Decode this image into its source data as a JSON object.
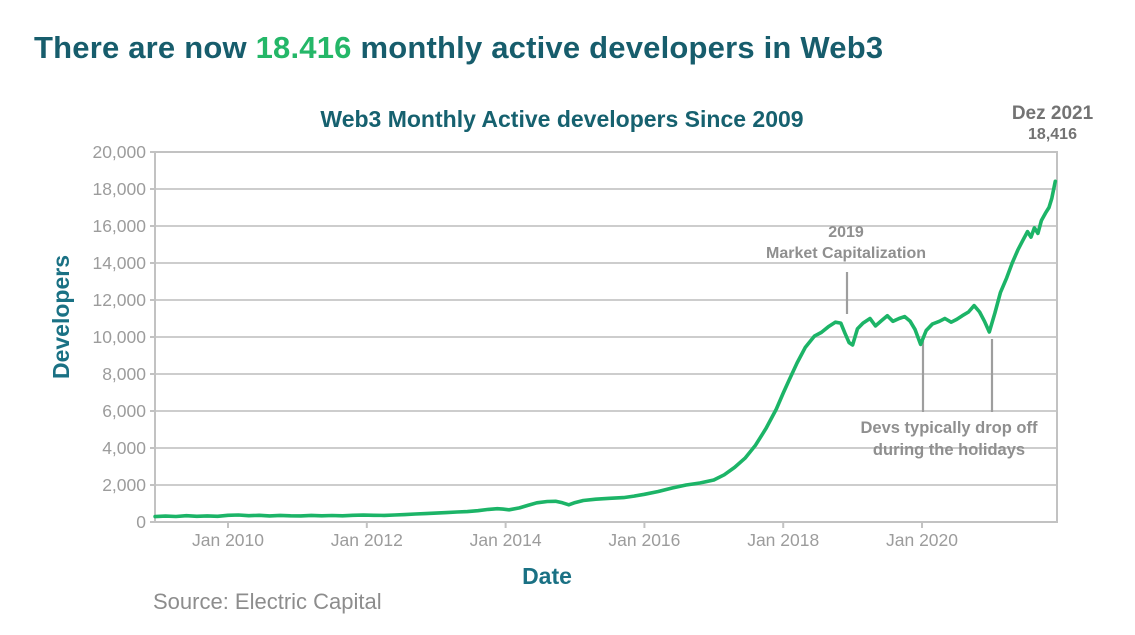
{
  "page_title": {
    "prefix": "There are now ",
    "highlight": "18.416",
    "suffix": " monthly active developers in Web3",
    "color": "#175d6c",
    "highlight_color": "#24b768"
  },
  "chart_data": {
    "type": "line",
    "title": "Web3 Monthly Active developers Since 2009",
    "xlabel": "Date",
    "ylabel": "Developers",
    "source": "Source: Electric Capital",
    "legend": "none",
    "grid": "horizontal",
    "xlim": [
      2008.948,
      2021.945
    ],
    "ylim": [
      0,
      20000
    ],
    "x_ticks": [
      {
        "year": 2010,
        "label": "Jan 2010"
      },
      {
        "year": 2012,
        "label": "Jan 2012"
      },
      {
        "year": 2014,
        "label": "Jan 2014"
      },
      {
        "year": 2016,
        "label": "Jan 2016"
      },
      {
        "year": 2018,
        "label": "Jan 2018"
      },
      {
        "year": 2020,
        "label": "Jan 2020"
      }
    ],
    "y_ticks": [
      {
        "value": 0,
        "label": "0"
      },
      {
        "value": 2000,
        "label": "2,000"
      },
      {
        "value": 4000,
        "label": "4,000"
      },
      {
        "value": 6000,
        "label": "6,000"
      },
      {
        "value": 8000,
        "label": "8,000"
      },
      {
        "value": 10000,
        "label": "10,000"
      },
      {
        "value": 12000,
        "label": "12,000"
      },
      {
        "value": 14000,
        "label": "14,000"
      },
      {
        "value": 16000,
        "label": "16,000"
      },
      {
        "value": 18000,
        "label": "18,000"
      },
      {
        "value": 20000,
        "label": "20,000"
      }
    ],
    "line_color": "#1cb467",
    "grid_color": "#cdcdcd",
    "border_color": "#c2c2c2",
    "tick_label_color": "#9c9c9c",
    "annotation_line_color": "#9e9e9e",
    "series": [
      {
        "name": "Web3 monthly active developers",
        "x": [
          2008.95,
          2009.1,
          2009.25,
          2009.4,
          2009.55,
          2009.7,
          2009.85,
          2010.0,
          2010.15,
          2010.3,
          2010.45,
          2010.6,
          2010.75,
          2010.9,
          2011.05,
          2011.2,
          2011.35,
          2011.5,
          2011.65,
          2011.8,
          2011.95,
          2012.1,
          2012.25,
          2012.4,
          2012.55,
          2012.7,
          2012.85,
          2013.0,
          2013.15,
          2013.3,
          2013.45,
          2013.6,
          2013.75,
          2013.88,
          2013.96,
          2014.05,
          2014.2,
          2014.32,
          2014.45,
          2014.6,
          2014.72,
          2014.82,
          2014.91,
          2015.0,
          2015.12,
          2015.3,
          2015.5,
          2015.7,
          2015.85,
          2016.0,
          2016.2,
          2016.4,
          2016.6,
          2016.8,
          2017.0,
          2017.15,
          2017.3,
          2017.45,
          2017.6,
          2017.75,
          2017.9,
          2018.0,
          2018.1,
          2018.2,
          2018.32,
          2018.45,
          2018.55,
          2018.65,
          2018.75,
          2018.83,
          2018.89,
          2018.95,
          2019.0,
          2019.07,
          2019.15,
          2019.25,
          2019.33,
          2019.42,
          2019.5,
          2019.58,
          2019.67,
          2019.75,
          2019.83,
          2019.9,
          2019.98,
          2020.06,
          2020.15,
          2020.25,
          2020.33,
          2020.42,
          2020.5,
          2020.58,
          2020.67,
          2020.75,
          2020.83,
          2020.9,
          2020.97,
          2021.05,
          2021.13,
          2021.22,
          2021.3,
          2021.38,
          2021.45,
          2021.52,
          2021.57,
          2021.62,
          2021.67,
          2021.72,
          2021.78,
          2021.83,
          2021.87,
          2021.92
        ],
        "y": [
          290,
          320,
          300,
          340,
          310,
          330,
          310,
          360,
          380,
          340,
          360,
          330,
          355,
          335,
          330,
          355,
          335,
          350,
          335,
          360,
          375,
          360,
          355,
          380,
          400,
          430,
          455,
          480,
          510,
          540,
          560,
          610,
          680,
          720,
          700,
          660,
          760,
          900,
          1040,
          1110,
          1120,
          1040,
          930,
          1050,
          1160,
          1230,
          1280,
          1320,
          1400,
          1500,
          1650,
          1840,
          2000,
          2110,
          2270,
          2550,
          2950,
          3450,
          4150,
          5050,
          6100,
          6970,
          7800,
          8600,
          9450,
          10050,
          10250,
          10550,
          10800,
          10750,
          10200,
          9700,
          9570,
          10450,
          10750,
          11000,
          10600,
          10900,
          11150,
          10850,
          11000,
          11100,
          10850,
          10400,
          9600,
          10350,
          10700,
          10850,
          11000,
          10800,
          10950,
          11150,
          11350,
          11700,
          11350,
          10850,
          10270,
          11300,
          12400,
          13200,
          14000,
          14700,
          15200,
          15700,
          15400,
          15900,
          15600,
          16300,
          16700,
          17000,
          17500,
          18416
        ]
      }
    ],
    "annotations": {
      "peak": {
        "line1": "Dez 2021",
        "line2": "18,416"
      },
      "market_cap": {
        "line1": "2019",
        "line2": "Market Capitalization"
      },
      "holidays": {
        "line1": "Devs typically drop off",
        "line2": "during the holidays"
      }
    }
  }
}
